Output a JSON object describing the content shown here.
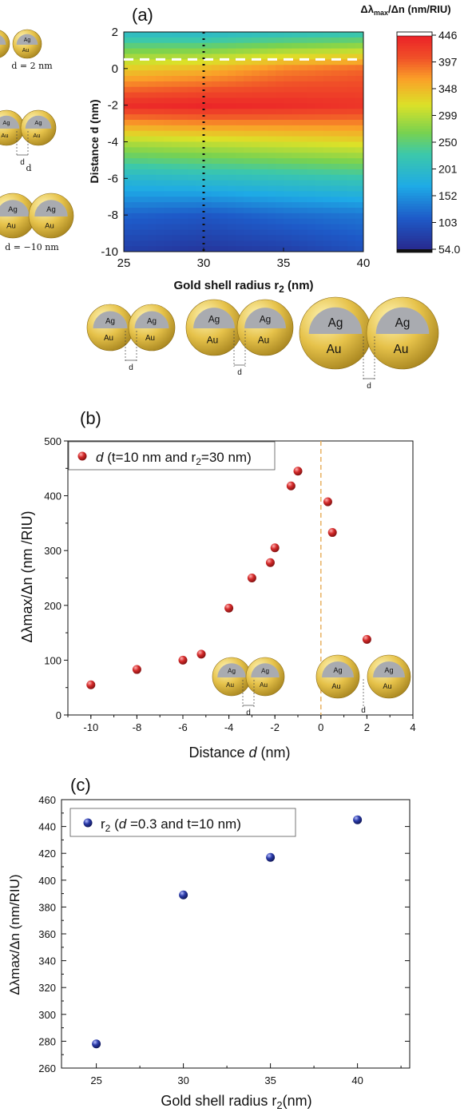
{
  "chart_data": [
    {
      "panel": "(a)",
      "type": "heatmap",
      "xlabel": "Gold shell radius r",
      "xlabel_sub": "2",
      "xlabel_unit": "(nm)",
      "ylabel": "Distance d (nm)",
      "xticks": [
        "25",
        "30",
        "35",
        "40"
      ],
      "yticks": [
        "2",
        "0",
        "-2",
        "-4",
        "-6",
        "-8",
        "-10"
      ],
      "xlim": [
        25,
        40
      ],
      "ylim": [
        -10,
        2
      ],
      "x": [
        25,
        30,
        35,
        40
      ],
      "y": [
        2,
        0,
        -2,
        -4,
        -6,
        -8,
        -10
      ],
      "z": [
        [
          200,
          195,
          205,
          215
        ],
        [
          335,
          350,
          380,
          395
        ],
        [
          440,
          446,
          440,
          432
        ],
        [
          300,
          310,
          320,
          330
        ],
        [
          195,
          205,
          215,
          225
        ],
        [
          120,
          110,
          125,
          135
        ],
        [
          80,
          70,
          80,
          100
        ]
      ],
      "colorbar": {
        "title": "Δλ",
        "title_sub": "max",
        "title_rest": "/Δn (nm/RIU)",
        "ticks": [
          "446",
          "397",
          "348",
          "299",
          "250",
          "201",
          "152",
          "103",
          "54.0"
        ],
        "min": 54.0,
        "max": 446
      },
      "dashed_hline_y": 0.5,
      "dotted_vline_x": 30,
      "colors": {
        "hline": "#ffffff",
        "vline": "#111111"
      },
      "side_labels": [
        "d = 2 nm",
        "d",
        "d = −10 nm"
      ],
      "particle_labels": [
        "Ag",
        "Au"
      ],
      "gap_label": "d"
    },
    {
      "panel": "(b)",
      "type": "scatter",
      "xlabel": "Distance",
      "xlabel_var": "d",
      "xlabel_unit": "(nm)",
      "ylabel": "Δλmax/Δn (nm /RIU)",
      "xlim": [
        -11,
        4
      ],
      "ylim": [
        0,
        500
      ],
      "xticks": [
        "-10",
        "-8",
        "-6",
        "-4",
        "-2",
        "0",
        "2",
        "4"
      ],
      "yticks": [
        "0",
        "100",
        "200",
        "300",
        "400",
        "500"
      ],
      "legend": {
        "var": "d",
        "text_a": " (t=10 nm and r",
        "sub": "2",
        "text_b": "=30 nm)"
      },
      "series": [
        {
          "name": "d (t=10 nm and r2=30 nm)",
          "color": "#d42a2a",
          "x": [
            -10,
            -8,
            -6,
            -5.2,
            -4,
            -3,
            -2.2,
            -2,
            -1.3,
            -1,
            0.3,
            0.5,
            2
          ],
          "y": [
            55,
            83,
            100,
            111,
            195,
            250,
            278,
            305,
            418,
            445,
            389,
            333,
            138
          ]
        }
      ],
      "dashed_vline_x": 0,
      "colors": {
        "vline": "#e8b060"
      },
      "particle_labels": [
        "Ag",
        "Au"
      ],
      "gap_label": "d"
    },
    {
      "panel": "(c)",
      "type": "scatter",
      "xlabel": "Gold shell radius r",
      "xlabel_sub": "2",
      "xlabel_unit": "(nm)",
      "ylabel": "Δλmax/Δn (nm/RIU)",
      "xlim": [
        23,
        43
      ],
      "ylim": [
        260,
        460
      ],
      "xticks": [
        "25",
        "30",
        "35",
        "40"
      ],
      "yticks": [
        "260",
        "280",
        "300",
        "320",
        "340",
        "360",
        "380",
        "400",
        "420",
        "440",
        "460"
      ],
      "legend": {
        "text_a": "r",
        "sub": "2",
        "text_b": " (",
        "var": "d",
        "text_c": " =0.3 and t=10 nm)"
      },
      "series": [
        {
          "name": "r2 (d =0.3 and t=10 nm)",
          "color": "#2a3aa8",
          "x": [
            25,
            30,
            35,
            40
          ],
          "y": [
            278,
            389,
            417,
            445
          ]
        }
      ]
    }
  ]
}
